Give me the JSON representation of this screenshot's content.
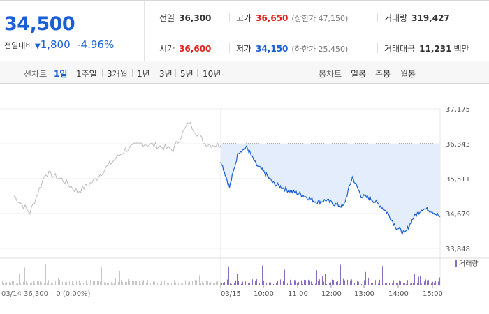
{
  "quote": {
    "price": "34,500",
    "change_label": "전일대비",
    "change_arrow": "▼",
    "change_value": "1,800",
    "change_pct": "-4.96%"
  },
  "stats": {
    "prev_close_label": "전일",
    "prev_close": "36,300",
    "high_label": "고가",
    "high": "36,650",
    "upper_limit": "(상한가 47,150)",
    "volume_label": "거래량",
    "volume": "319,427",
    "open_label": "시가",
    "open": "36,600",
    "low_label": "저가",
    "low": "34,150",
    "lower_limit": "(하한가 25,450)",
    "amount_label": "거래대금",
    "amount": "11,231",
    "amount_unit": "백만"
  },
  "tabs": {
    "line_label": "선차트",
    "line": [
      "1일",
      "1주일",
      "3개월",
      "1년",
      "3년",
      "5년",
      "10년"
    ],
    "active_line": "1일",
    "candle_label": "봉차트",
    "candle": [
      "일봉",
      "주봉",
      "월봉"
    ]
  },
  "colors": {
    "accent": "#1a5fd6",
    "up": "#e0211c",
    "prev_line": "#bbbbbb",
    "area": "#e3edfb",
    "volume": "#8a6cc0"
  },
  "chart_data": {
    "type": "line",
    "y_ticks": [
      "37,175",
      "36,343",
      "35,511",
      "34,679",
      "33,848"
    ],
    "ylim": [
      33848,
      37175
    ],
    "x_ticks": [
      "03/15",
      "10:00",
      "11:00",
      "12:00",
      "13:00",
      "14:00",
      "15:00"
    ],
    "prev_day_footer": "03/14  36,300 – 0 (0.00%)",
    "volume_legend": "거래량",
    "reference_price": 36343,
    "series": [
      {
        "name": "",
        "times": [
          "prev 09:00",
          "prev 09:30",
          "prev 10:00",
          "prev 10:30",
          "prev 11:00",
          "prev 11:30",
          "prev 12:00",
          "prev 12:30",
          "prev 13:00",
          "prev 13:30",
          "prev 14:00",
          "prev 14:30",
          "prev 15:00",
          "prev 15:30"
        ],
        "values": [
          35100,
          34700,
          35650,
          35500,
          35200,
          35450,
          35850,
          36200,
          36350,
          36300,
          36200,
          36850,
          36350,
          36300
        ]
      },
      {
        "name": "",
        "times": [
          "09:00",
          "09:15",
          "09:30",
          "09:45",
          "10:00",
          "10:15",
          "10:30",
          "10:45",
          "11:00",
          "11:15",
          "11:30",
          "11:45",
          "12:00",
          "12:15",
          "12:30",
          "12:45",
          "13:00",
          "13:15",
          "13:30",
          "13:45",
          "14:00",
          "14:15",
          "14:30",
          "14:45",
          "15:00",
          "15:15"
        ],
        "values": [
          35950,
          35300,
          36150,
          36250,
          35850,
          35650,
          35400,
          35300,
          35200,
          35150,
          35050,
          34950,
          35000,
          34900,
          34850,
          35550,
          35100,
          35050,
          34900,
          34700,
          34350,
          34200,
          34600,
          34800,
          34750,
          34600
        ]
      }
    ]
  }
}
